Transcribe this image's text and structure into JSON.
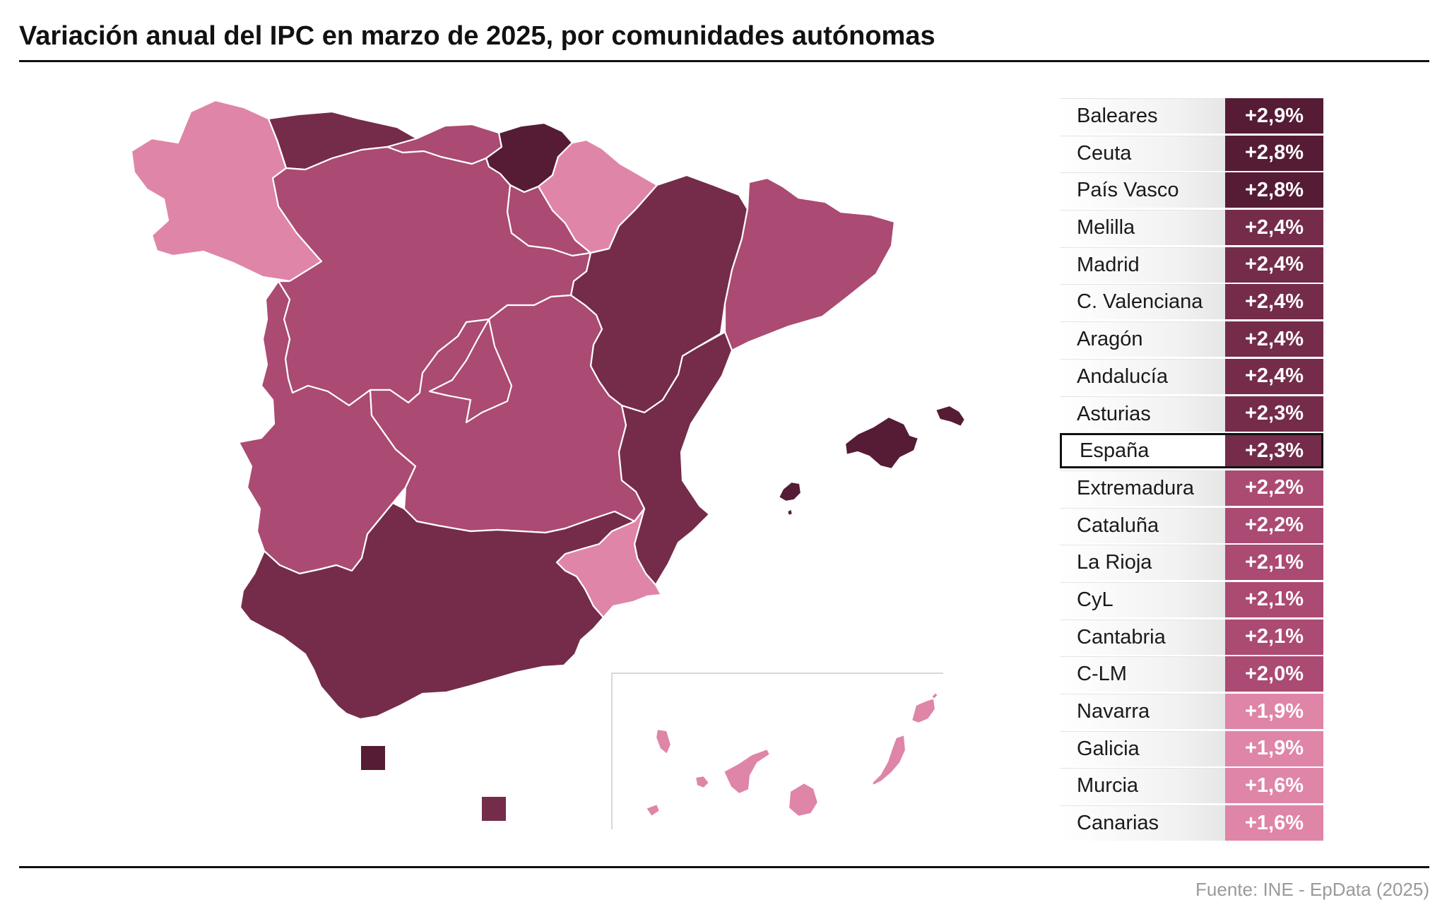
{
  "title": "Variación anual del IPC en marzo de 2025, por comunidades autónomas",
  "source": "Fuente: INE - EpData (2025)",
  "colors": {
    "c29": "#561c35",
    "c28": "#561c35",
    "c24": "#742c4a",
    "c23": "#742c4a",
    "c22": "#ab4a72",
    "c21": "#ab4a72",
    "c20": "#ab4a72",
    "c19": "#df85a8",
    "c16": "#df85a8"
  },
  "rows": [
    {
      "name": "Baleares",
      "value": "+2,9%",
      "color": "#561c35"
    },
    {
      "name": "Ceuta",
      "value": "+2,8%",
      "color": "#561c35"
    },
    {
      "name": "País Vasco",
      "value": "+2,8%",
      "color": "#561c35"
    },
    {
      "name": "Melilla",
      "value": "+2,4%",
      "color": "#742c4a"
    },
    {
      "name": "Madrid",
      "value": "+2,4%",
      "color": "#742c4a"
    },
    {
      "name": "C. Valenciana",
      "value": "+2,4%",
      "color": "#742c4a"
    },
    {
      "name": "Aragón",
      "value": "+2,4%",
      "color": "#742c4a"
    },
    {
      "name": "Andalucía",
      "value": "+2,4%",
      "color": "#742c4a"
    },
    {
      "name": "Asturias",
      "value": "+2,3%",
      "color": "#742c4a"
    },
    {
      "name": "España",
      "value": "+2,3%",
      "color": "#742c4a",
      "highlight": true
    },
    {
      "name": "Extremadura",
      "value": "+2,2%",
      "color": "#ab4a72"
    },
    {
      "name": "Cataluña",
      "value": "+2,2%",
      "color": "#ab4a72"
    },
    {
      "name": "La Rioja",
      "value": "+2,1%",
      "color": "#ab4a72"
    },
    {
      "name": "CyL",
      "value": "+2,1%",
      "color": "#ab4a72"
    },
    {
      "name": "Cantabria",
      "value": "+2,1%",
      "color": "#ab4a72"
    },
    {
      "name": "C-LM",
      "value": "+2,0%",
      "color": "#ab4a72"
    },
    {
      "name": "Navarra",
      "value": "+1,9%",
      "color": "#df85a8"
    },
    {
      "name": "Galicia",
      "value": "+1,9%",
      "color": "#df85a8"
    },
    {
      "name": "Murcia",
      "value": "+1,6%",
      "color": "#df85a8"
    },
    {
      "name": "Canarias",
      "value": "+1,6%",
      "color": "#df85a8"
    }
  ]
}
